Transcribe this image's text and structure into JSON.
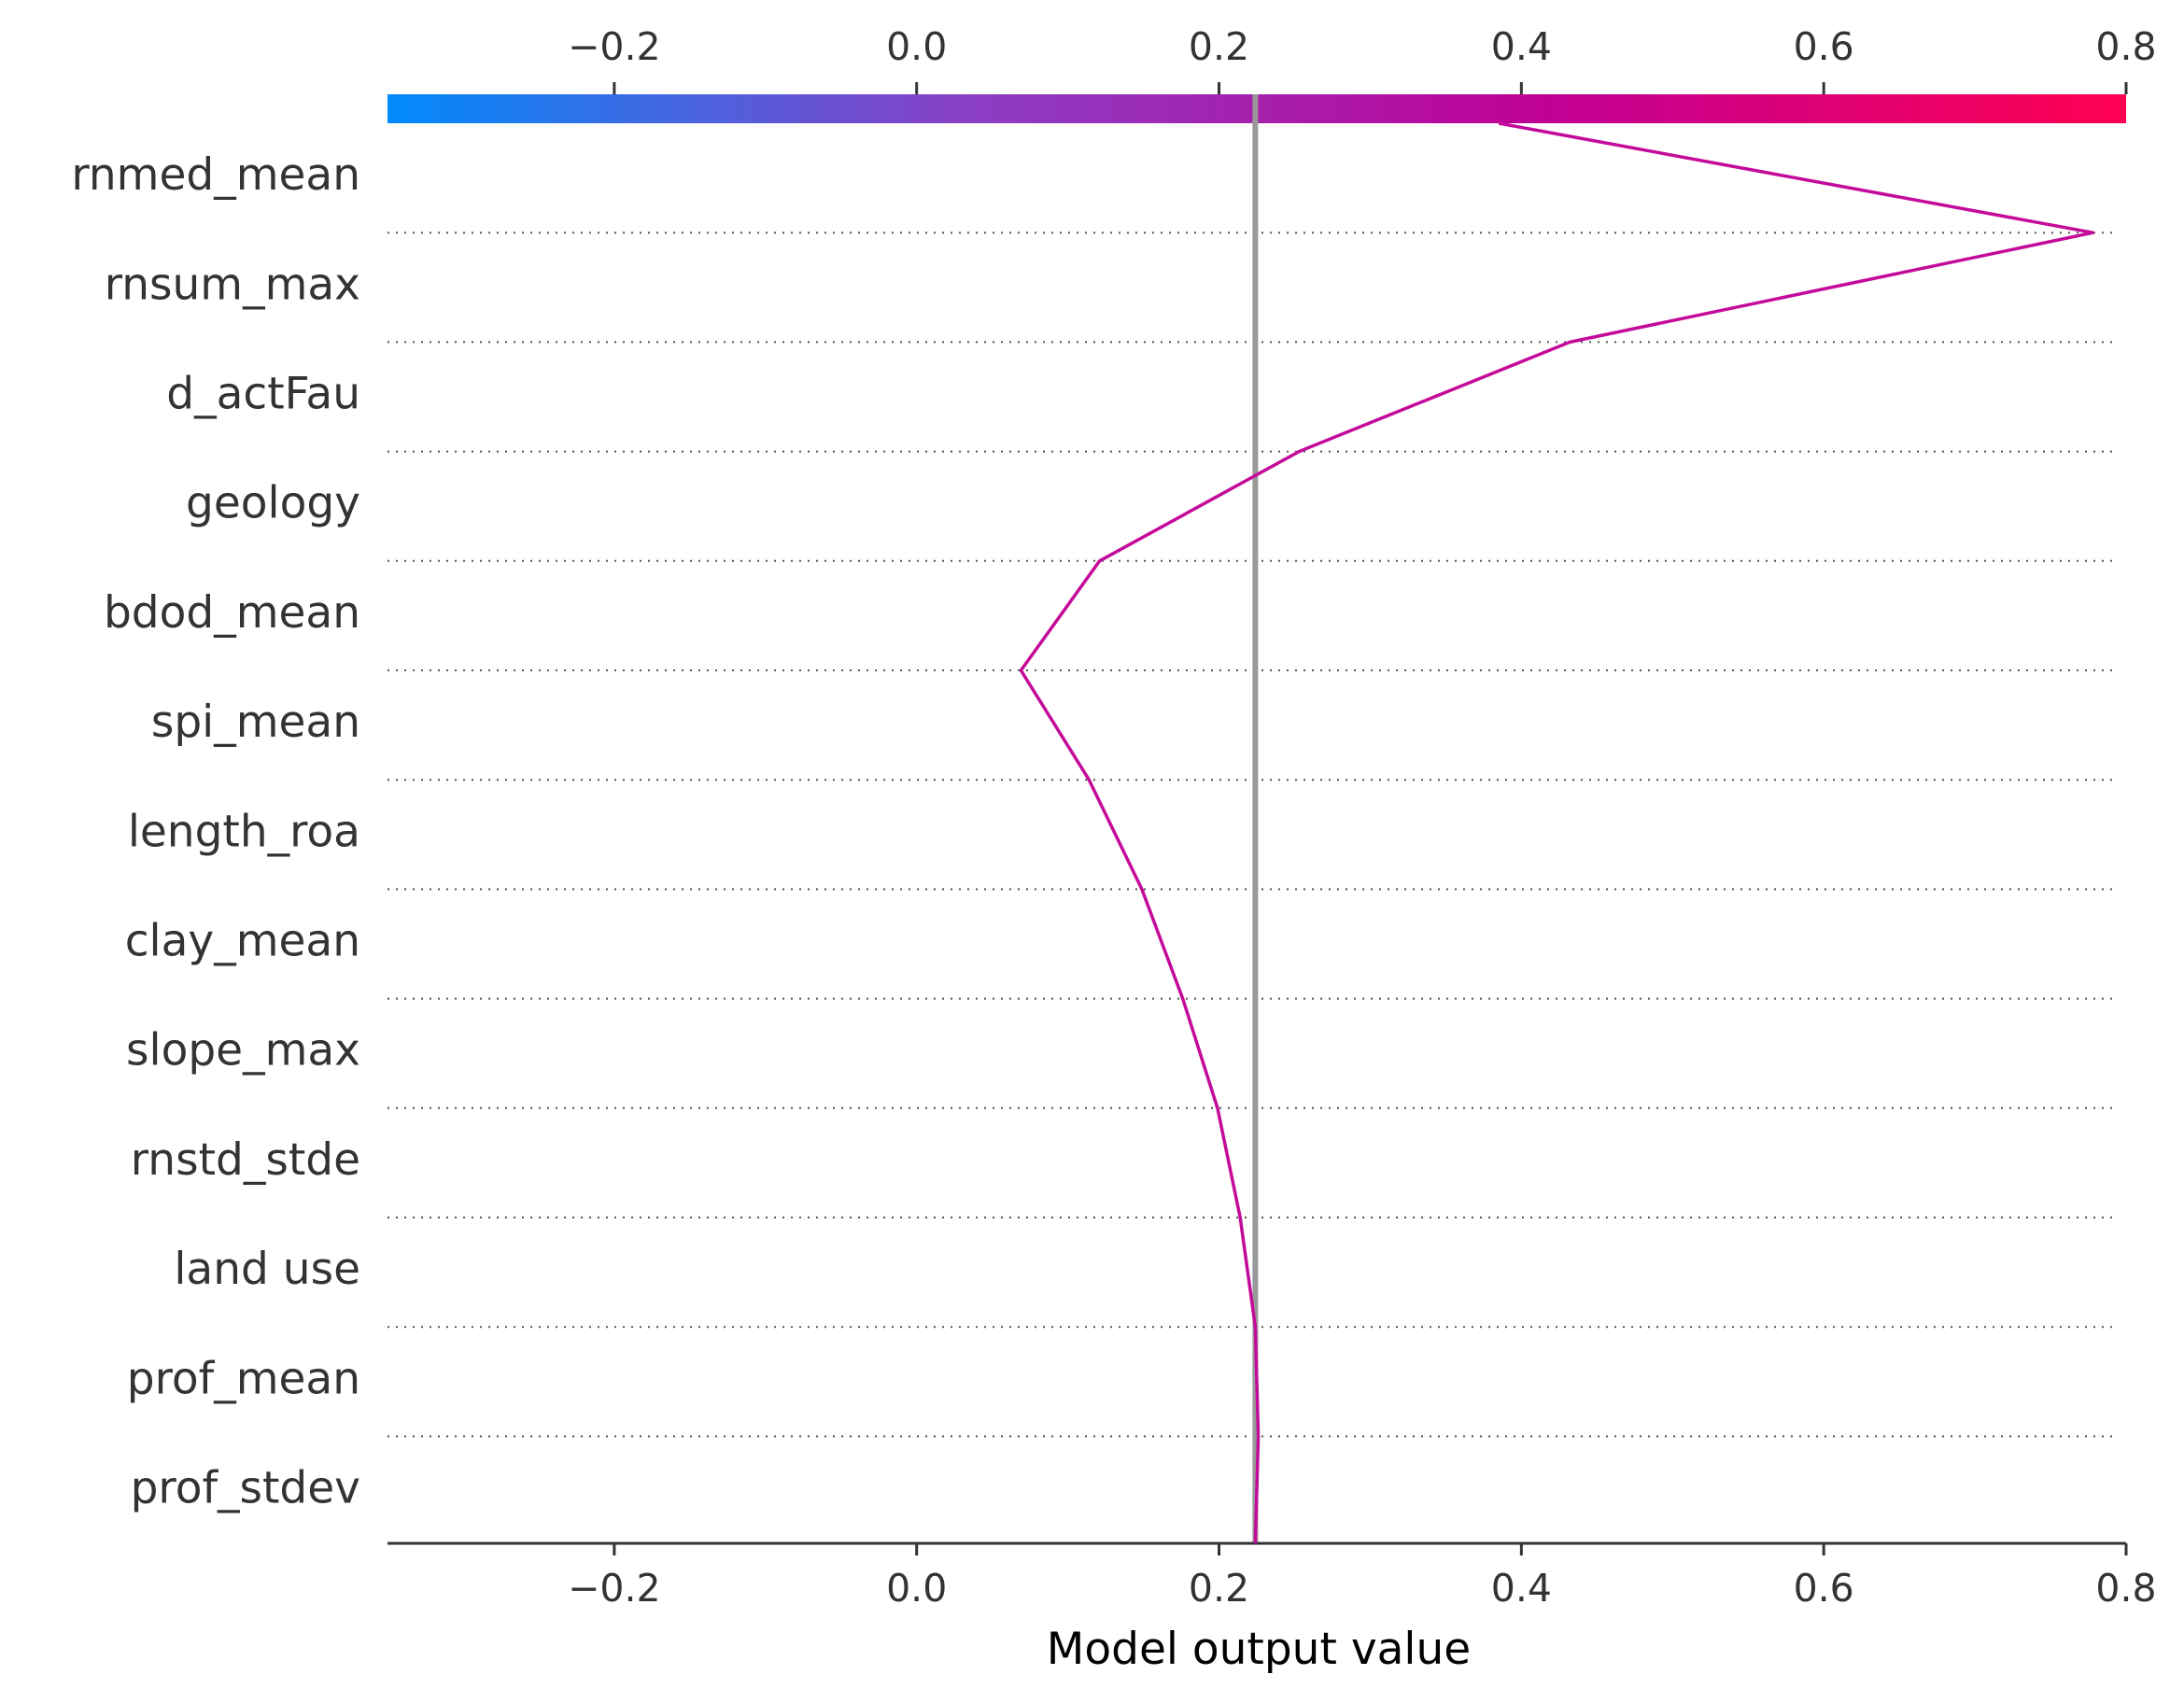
{
  "chart_data": {
    "type": "line",
    "title": "",
    "xlabel": "Model output value",
    "ylabel": "",
    "xlim": [
      -0.35,
      0.8
    ],
    "xticks": [
      -0.2,
      0.0,
      0.2,
      0.4,
      0.6,
      0.8
    ],
    "xtick_labels": [
      "−0.2",
      "0.0",
      "0.2",
      "0.4",
      "0.6",
      "0.8"
    ],
    "base_value": 0.224,
    "colorbar": {
      "range": [
        -0.35,
        0.8
      ],
      "stops": [
        "#008bfb",
        "#8a3fc5",
        "#c00095",
        "#ff0052"
      ]
    },
    "line_color": "#c40a9a",
    "grid": "dotted horizontal separators",
    "features": [
      "rnmed_mean",
      "rnsum_max",
      "d_actFau",
      "geology",
      "bdod_mean",
      "spi_mean",
      "length_roa",
      "clay_mean",
      "slope_max",
      "rnstd_stde",
      "land use",
      "prof_mean",
      "prof_stdev"
    ],
    "cumulative_values": [
      0.385,
      0.778,
      0.432,
      0.253,
      0.121,
      0.069,
      0.114,
      0.149,
      0.176,
      0.199,
      0.214,
      0.224,
      0.226,
      0.224
    ]
  }
}
